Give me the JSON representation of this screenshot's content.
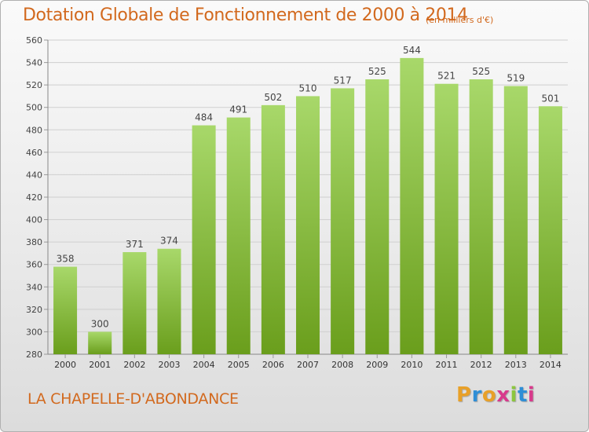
{
  "header": {
    "title": "Dotation Globale de Fonctionnement de 2000 à 2014",
    "subtitle": "(en milliers d'€)"
  },
  "footer": {
    "commune": "LA CHAPELLE-D'ABONDANCE",
    "logo_text": "Proxiti",
    "logo_colors": [
      "#e8a028",
      "#2e8ed6",
      "#e8a028",
      "#d83a8c",
      "#8cc63f",
      "#2e8ed6",
      "#d83a8c"
    ]
  },
  "colors": {
    "title": "#d2691e",
    "bar_light": "#a8d86a",
    "bar_dark": "#6a9e1c",
    "grid": "#cfcfcf"
  },
  "chart_data": {
    "type": "bar",
    "categories": [
      "2000",
      "2001",
      "2002",
      "2003",
      "2004",
      "2005",
      "2006",
      "2007",
      "2008",
      "2009",
      "2010",
      "2011",
      "2012",
      "2013",
      "2014"
    ],
    "values": [
      358,
      300,
      371,
      374,
      484,
      491,
      502,
      510,
      517,
      525,
      544,
      521,
      525,
      519,
      501
    ],
    "ylim": [
      280,
      560
    ],
    "yticks": [
      280,
      300,
      320,
      340,
      360,
      380,
      400,
      420,
      440,
      460,
      480,
      500,
      520,
      540,
      560
    ],
    "data_labels": true,
    "grid": true,
    "title": "Dotation Globale de Fonctionnement de 2000 à 2014",
    "xlabel": "",
    "ylabel": ""
  }
}
